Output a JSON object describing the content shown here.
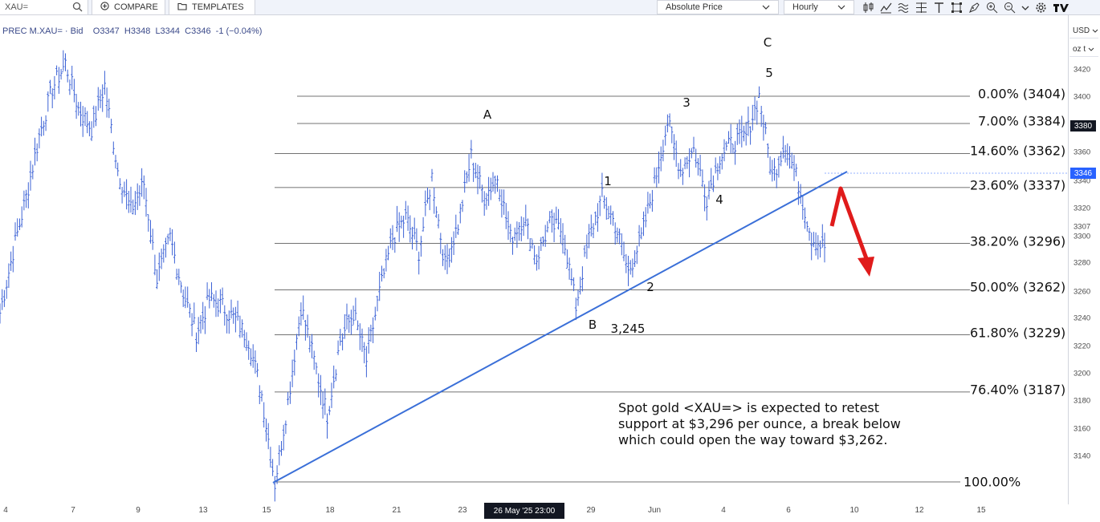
{
  "toolbar": {
    "symbol": "XAU=",
    "compare_label": "COMPARE",
    "templates_label": "TEMPLATES",
    "price_type": "Absolute Price",
    "interval": "Hourly",
    "icons": [
      "candles-icon",
      "indicator-icon",
      "fib-icon",
      "crosshair-tool-icon",
      "text-tool-icon",
      "shape-tool-icon",
      "annotation-icon",
      "zoom-in-icon",
      "zoom-out-icon",
      "gear-icon"
    ]
  },
  "legend": {
    "text": "PREC M.XAU= · Bid    O3347  H3348  L3344  C3346  -1 (−0.04%)"
  },
  "axis": {
    "currency": "USD",
    "unit": "oz t",
    "y_ticks": [
      "3420",
      "3400",
      "3380",
      "3360",
      "3340",
      "3320",
      "3307",
      "3300",
      "3280",
      "3260",
      "3240",
      "3220",
      "3200",
      "3180",
      "3160",
      "3140"
    ],
    "tag_3380": "3380",
    "tag_3346": "3346",
    "x_ticks": [
      "4",
      "7",
      "9",
      "13",
      "15",
      "18",
      "21",
      "23",
      "29",
      "Jun",
      "4",
      "6",
      "10",
      "12",
      "15"
    ],
    "crosshair_time": "26 May '25   23:00",
    "colors": {
      "last_price": "#2962ff",
      "crosshair": "#131722",
      "trendline": "#3a6fd8",
      "arrow": "#e01b1b"
    }
  },
  "fib_levels": [
    {
      "label": "0.00% (3404)",
      "price": 3404
    },
    {
      "label": "7.00% (3384)",
      "price": 3384
    },
    {
      "label": "14.60% (3362)",
      "price": 3362
    },
    {
      "label": "23.60% (3337)",
      "price": 3337
    },
    {
      "label": "38.20% (3296)",
      "price": 3296
    },
    {
      "label": "50.00% (3262)",
      "price": 3262
    },
    {
      "label": "61.80% (3229)",
      "price": 3229
    },
    {
      "label": "76.40% (3187)",
      "price": 3187
    },
    {
      "label": "100.00%",
      "price": 3120
    }
  ],
  "wave_labels": {
    "A": "A",
    "B": "B",
    "C": "C",
    "w1": "1",
    "w2": "2",
    "w3": "3",
    "w4": "4",
    "w5": "5",
    "low_value": "3,245"
  },
  "annotation": {
    "line1": "Spot gold <XAU=> is expected to retest",
    "line2": "support at $3,296 per ounce, a break below",
    "line3": "which could open the way toward $3,262."
  },
  "chart_data": {
    "type": "line",
    "title": "",
    "xlabel": "",
    "ylabel": "",
    "ylim": [
      3120,
      3430
    ],
    "grid": false,
    "x_ticks": [
      "4",
      "7",
      "9",
      "13",
      "15",
      "18",
      "21",
      "23",
      "26 May '25",
      "29",
      "Jun",
      "4",
      "6",
      "10",
      "12",
      "15"
    ],
    "series": [
      {
        "values": [
          3245,
          3290,
          3330,
          3375,
          3410,
          3428,
          3395,
          3380,
          3412,
          3350,
          3320,
          3340,
          3270,
          3300,
          3260,
          3230,
          3255,
          3250,
          3240,
          3225,
          3185,
          3120,
          3180,
          3250,
          3210,
          3170,
          3225,
          3245,
          3210,
          3260,
          3300,
          3315,
          3290,
          3345,
          3280,
          3310,
          3360,
          3330,
          3345,
          3300,
          3315,
          3285,
          3310,
          3305,
          3250,
          3300,
          3330,
          3310,
          3275,
          3300,
          3340,
          3385,
          3350,
          3365,
          3330,
          3360,
          3370,
          3375,
          3404,
          3345,
          3370,
          3340,
          3300,
          3293
        ]
      }
    ],
    "fib_retracement": {
      "high": 3404,
      "low": 3120,
      "levels_pct": [
        0,
        7,
        14.6,
        23.6,
        38.2,
        50,
        61.8,
        76.4,
        100
      ]
    },
    "annotations": [
      "A",
      "B",
      "C",
      "1",
      "2",
      "3",
      "4",
      "5",
      "3,245"
    ]
  }
}
